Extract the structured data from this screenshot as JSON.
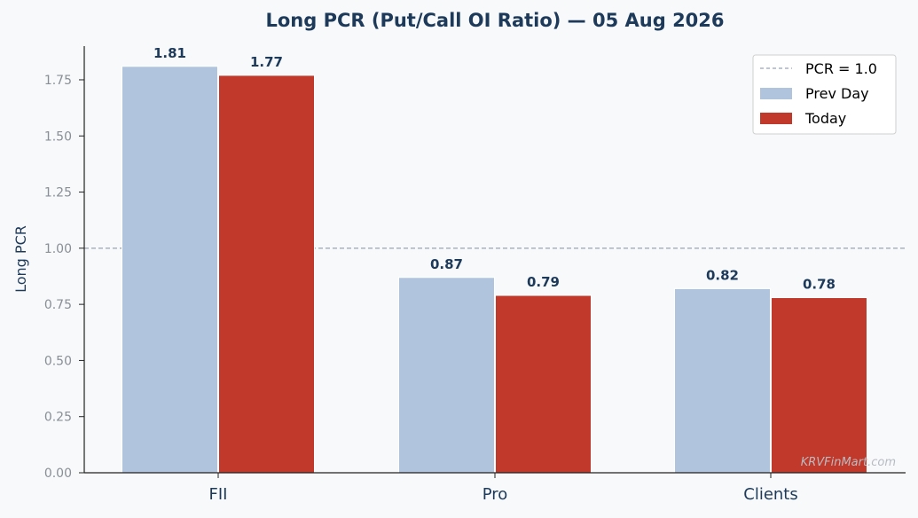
{
  "chart_data": {
    "type": "bar",
    "title": "Long PCR (Put/Call OI Ratio) — 05 Aug 2026",
    "ylabel": "Long PCR",
    "xlabel": "",
    "categories": [
      "FII",
      "Pro",
      "Clients"
    ],
    "series": [
      {
        "name": "Prev Day",
        "values": [
          1.81,
          0.87,
          0.82
        ],
        "color": "#b0c4de"
      },
      {
        "name": "Today",
        "values": [
          1.77,
          0.79,
          0.78
        ],
        "color": "#c0392b"
      }
    ],
    "data_labels": [
      [
        "1.81",
        "0.87",
        "0.82"
      ],
      [
        "1.77",
        "0.79",
        "0.78"
      ]
    ],
    "ylim": [
      0,
      1.9
    ],
    "yticks": [
      0,
      0.25,
      0.5,
      0.75,
      1.0,
      1.25,
      1.5,
      1.75
    ],
    "ytick_labels": [
      "0.00",
      "0.25",
      "0.50",
      "0.75",
      "1.00",
      "1.25",
      "1.50",
      "1.75"
    ],
    "reference_line": {
      "value": 1.0,
      "label": "PCR = 1.0",
      "color": "#9aa3b5",
      "style": "dashed"
    },
    "legend": {
      "placement": "top-right",
      "entries": [
        "PCR = 1.0",
        "Prev Day",
        "Today"
      ]
    },
    "grid": false
  },
  "watermark": "KRVFinMart.com"
}
